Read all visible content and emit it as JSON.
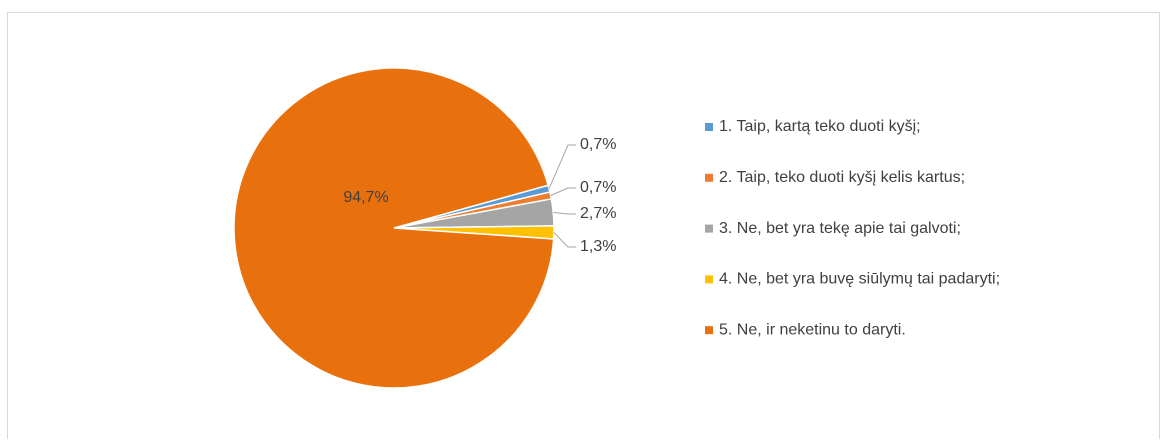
{
  "chart_data": {
    "type": "pie",
    "categories": [
      "1. Taip, kartą teko duoti kyšį;",
      "2. Taip, teko duoti kyšį kelis kartus;",
      "3. Ne, bet yra tekę apie tai galvoti;",
      "4. Ne, bet yra buvę siūlymų tai padaryti;",
      "5. Ne, ir neketinu to daryti."
    ],
    "values": [
      0.7,
      0.7,
      2.7,
      1.3,
      94.7
    ],
    "value_labels": [
      "0,7%",
      "0,7%",
      "2,7%",
      "1,3%",
      "94,7%"
    ],
    "colors": [
      "#5b9bd5",
      "#ed7d31",
      "#a5a5a5",
      "#ffc000",
      "#e8710e"
    ],
    "legend": "right"
  }
}
